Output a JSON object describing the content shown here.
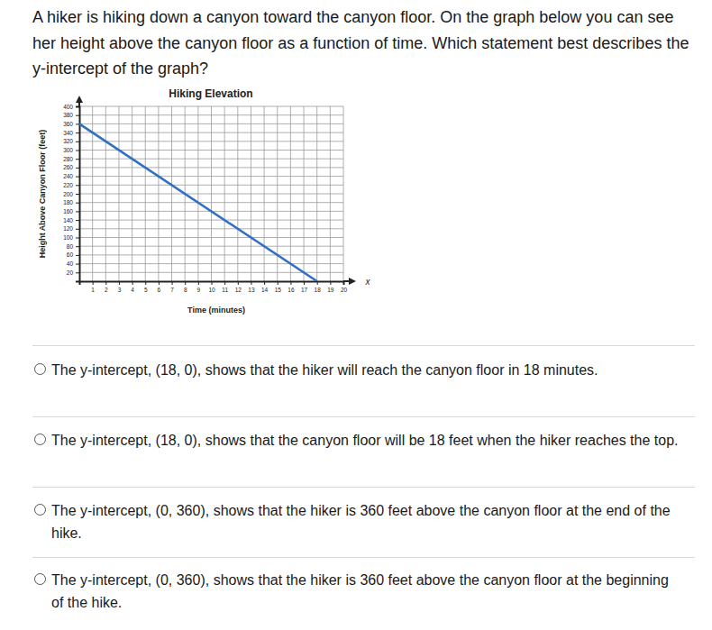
{
  "question": "A hiker is hiking down a canyon toward the canyon floor. On the graph below you can see her height above the canyon floor as a function of time. Which statement best describes the y-intercept of the graph?",
  "chart_data": {
    "type": "line",
    "title": "Hiking Elevation",
    "x_label": "Time (minutes)",
    "y_label": "Height Above Canyon Floor (feet)",
    "annotations": [
      "x"
    ],
    "x": [
      0,
      18
    ],
    "values": [
      360,
      0
    ],
    "color": "#2f6fc4",
    "xlim": [
      0,
      20
    ],
    "xticks": [
      1,
      2,
      3,
      4,
      5,
      6,
      7,
      8,
      9,
      10,
      11,
      12,
      13,
      14,
      15,
      16,
      17,
      18,
      19,
      20
    ],
    "ylim": [
      0,
      400
    ],
    "yticks": [
      20,
      40,
      60,
      80,
      100,
      120,
      140,
      160,
      180,
      200,
      220,
      240,
      260,
      280,
      300,
      320,
      340,
      360,
      380,
      400
    ],
    "grid": true
  },
  "options": [
    "The y-intercept, (18, 0), shows that the hiker will reach the canyon floor in 18 minutes.",
    "The y-intercept, (18, 0), shows that the canyon floor will be 18 feet when the hiker reaches the top.",
    "The y-intercept, (0, 360), shows that the hiker is 360 feet above the canyon floor at the end of the hike.",
    "The y-intercept, (0, 360), shows that the hiker is 360 feet above the canyon floor at the beginning of the hike."
  ]
}
